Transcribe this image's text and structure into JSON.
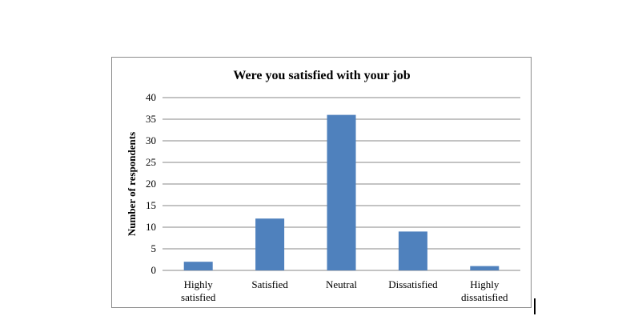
{
  "chart_data": {
    "type": "bar",
    "title": "Were you satisfied with your job",
    "ylabel": "Number of respondents",
    "xlabel": "",
    "categories": [
      [
        "Highly",
        "satisfied"
      ],
      [
        "Satisfied"
      ],
      [
        "Neutral"
      ],
      [
        "Dissatisfied"
      ],
      [
        "Highly",
        "dissatisfied"
      ]
    ],
    "category_keys": [
      "highly-satisfied",
      "satisfied",
      "neutral",
      "dissatisfied",
      "highly-dissatisfied"
    ],
    "values": [
      2,
      12,
      36,
      9,
      1
    ],
    "ylim": [
      0,
      40
    ],
    "yticks": [
      0,
      5,
      10,
      15,
      20,
      25,
      30,
      35,
      40
    ],
    "grid": true,
    "legend": "none",
    "bar_color": "#4f81bd",
    "grid_color": "#878787"
  }
}
